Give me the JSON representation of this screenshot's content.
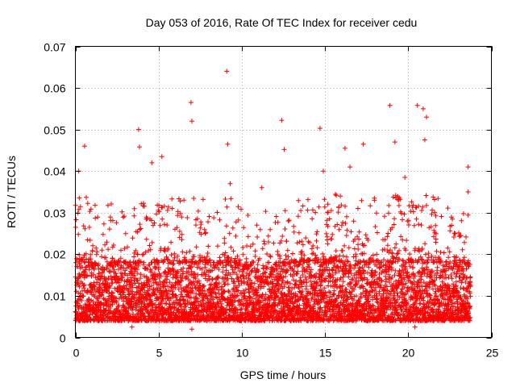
{
  "chart_data": {
    "type": "scatter",
    "title": "Day 053 of 2016, Rate Of TEC Index for receiver cedu",
    "xlabel": "GPS time / hours",
    "ylabel": "ROTI / TECUs",
    "xlim": [
      0,
      25
    ],
    "ylim": [
      0,
      0.07
    ],
    "xticks": [
      0,
      5,
      10,
      15,
      20,
      25
    ],
    "yticks": [
      0,
      0.01,
      0.02,
      0.03,
      0.04,
      0.05,
      0.06,
      0.07
    ],
    "xtick_labels": [
      "0",
      "5",
      "10",
      "15",
      "20",
      "25"
    ],
    "ytick_labels": [
      "0",
      "0.01",
      "0.02",
      "0.03",
      "0.04",
      "0.05",
      "0.06",
      "0.07"
    ],
    "grid": true,
    "marker": "plus",
    "series": [
      {
        "name": "ROTI",
        "color": "#ff0000",
        "x_range": [
          0,
          23.75
        ],
        "typical_range": [
          0.004,
          0.018
        ],
        "sample_count": 5200,
        "notable_points": [
          {
            "x": 9.1,
            "y": 0.064
          },
          {
            "x": 6.95,
            "y": 0.0565
          },
          {
            "x": 18.9,
            "y": 0.0558
          },
          {
            "x": 20.55,
            "y": 0.0558
          },
          {
            "x": 20.9,
            "y": 0.055
          },
          {
            "x": 21.1,
            "y": 0.053
          },
          {
            "x": 12.4,
            "y": 0.0522
          },
          {
            "x": 7.0,
            "y": 0.052
          },
          {
            "x": 14.7,
            "y": 0.0503
          },
          {
            "x": 3.8,
            "y": 0.05
          },
          {
            "x": 21.0,
            "y": 0.0475
          },
          {
            "x": 19.2,
            "y": 0.047
          },
          {
            "x": 9.15,
            "y": 0.0465
          },
          {
            "x": 0.55,
            "y": 0.046
          },
          {
            "x": 3.85,
            "y": 0.0458
          },
          {
            "x": 12.55,
            "y": 0.0452
          },
          {
            "x": 17.3,
            "y": 0.0465
          },
          {
            "x": 16.2,
            "y": 0.0455
          },
          {
            "x": 5.2,
            "y": 0.0435
          },
          {
            "x": 4.6,
            "y": 0.042
          },
          {
            "x": 23.6,
            "y": 0.041
          },
          {
            "x": 0.2,
            "y": 0.04
          },
          {
            "x": 14.9,
            "y": 0.04
          },
          {
            "x": 16.5,
            "y": 0.041
          },
          {
            "x": 19.8,
            "y": 0.0385
          },
          {
            "x": 9.3,
            "y": 0.037
          },
          {
            "x": 11.2,
            "y": 0.036
          },
          {
            "x": 23.6,
            "y": 0.035
          },
          {
            "x": 0.05,
            "y": 0.006
          },
          {
            "x": 3.4,
            "y": 0.0025
          },
          {
            "x": 7.0,
            "y": 0.002
          },
          {
            "x": 20.4,
            "y": 0.0025
          }
        ]
      }
    ]
  }
}
